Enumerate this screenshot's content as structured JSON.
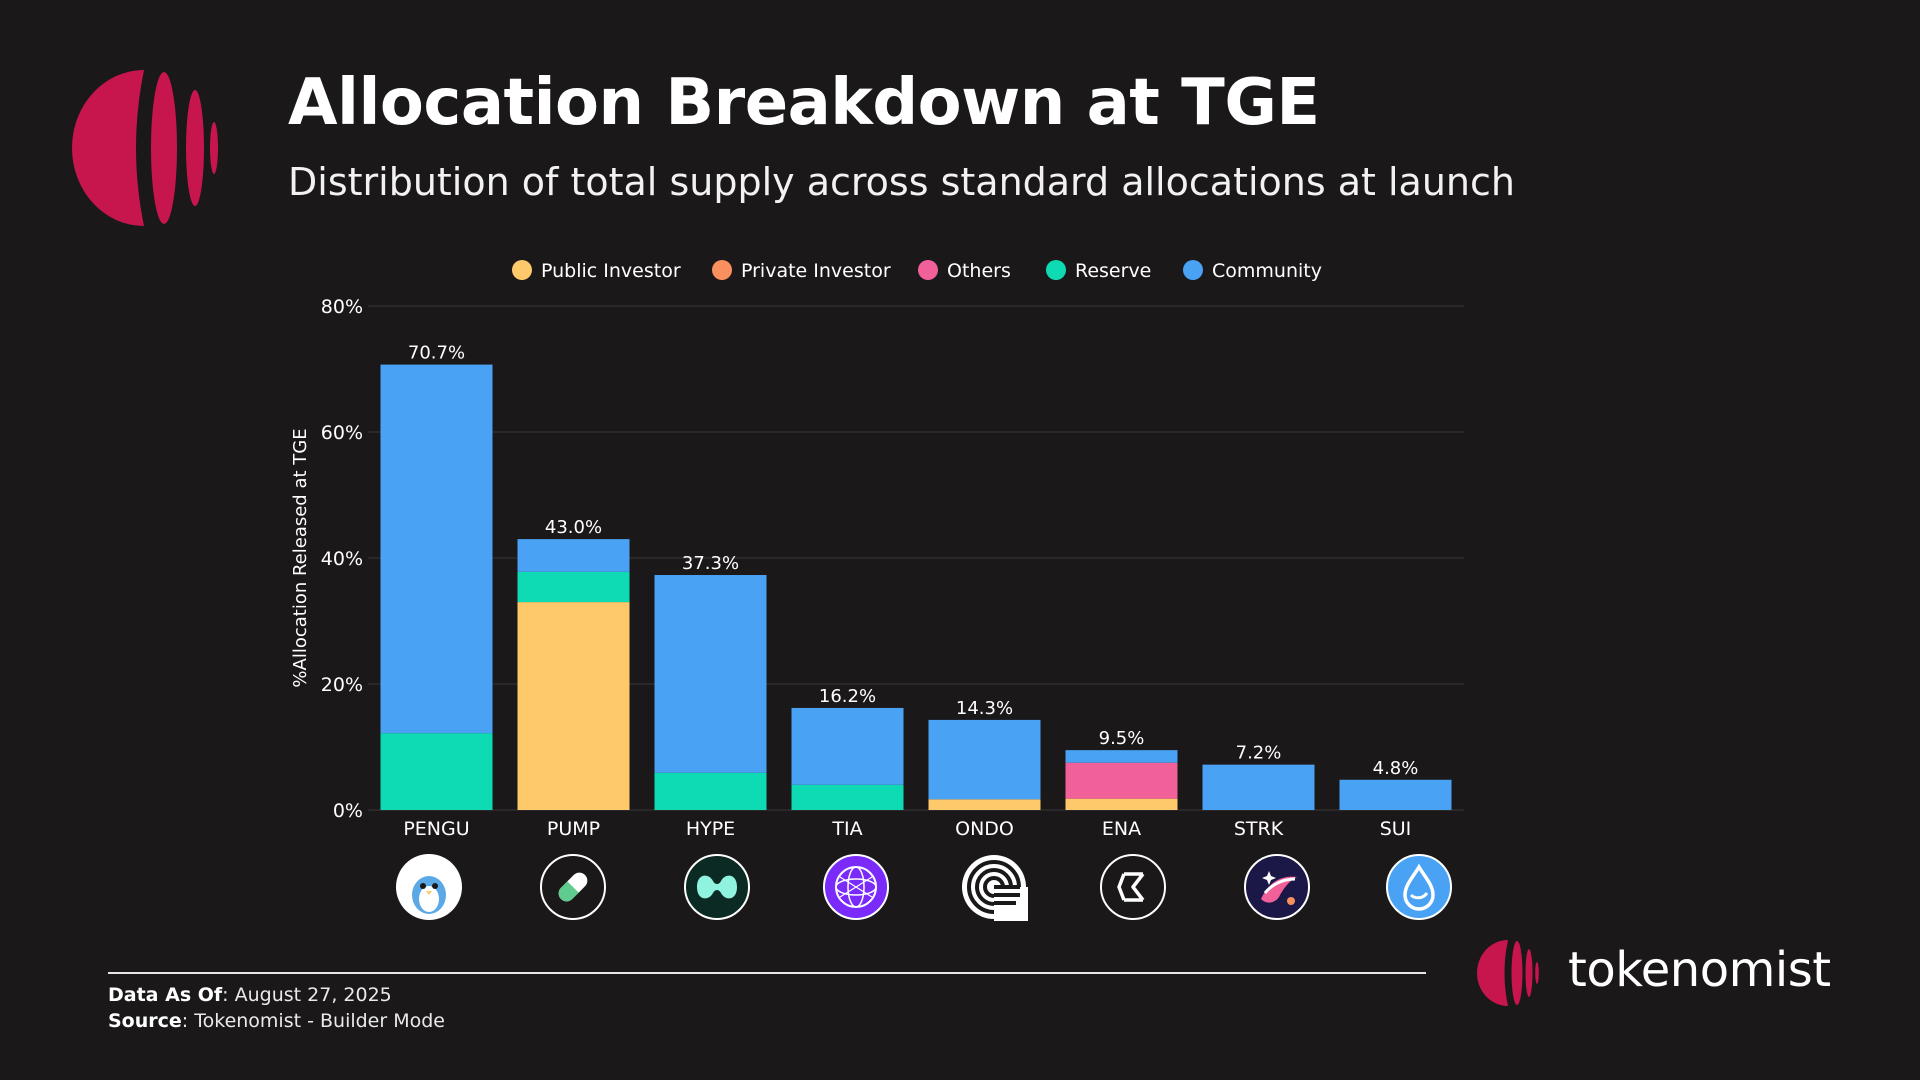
{
  "header": {
    "title": "Allocation Breakdown at TGE",
    "subtitle": "Distribution of total supply across standard allocations at launch"
  },
  "colors": {
    "background": "#1b1819",
    "brand": "#c7154d",
    "public_investor": "#fec96a",
    "private_investor": "#f9905e",
    "others": "#f2609a",
    "reserve": "#0edbb3",
    "community": "#4aa2f4",
    "grid": "#3a3638"
  },
  "chart_data": {
    "type": "bar",
    "stacked": true,
    "title": "Allocation Breakdown at TGE",
    "subtitle": "Distribution of total supply across standard allocations at launch",
    "xlabel": "",
    "ylabel": "%Allocation Released at TGE",
    "ylim": [
      0,
      80
    ],
    "yticks": [
      "0%",
      "20%",
      "40%",
      "60%",
      "80%"
    ],
    "grid": true,
    "legend_position": "top-center",
    "categories": [
      "PENGU",
      "PUMP",
      "HYPE",
      "TIA",
      "ONDO",
      "ENA",
      "STRK",
      "SUI"
    ],
    "totals": [
      "70.7%",
      "43.0%",
      "37.3%",
      "16.2%",
      "14.3%",
      "9.5%",
      "7.2%",
      "4.8%"
    ],
    "series": [
      {
        "name": "Public Investor",
        "color": "#fec96a",
        "values": [
          0,
          33,
          0,
          0,
          1.7,
          1.8,
          0,
          0
        ]
      },
      {
        "name": "Private Investor",
        "color": "#f9905e",
        "values": [
          0,
          0,
          0,
          0,
          0,
          0,
          0,
          0
        ]
      },
      {
        "name": "Others",
        "color": "#f2609a",
        "values": [
          0,
          0,
          0,
          0,
          0,
          5.7,
          0,
          0
        ]
      },
      {
        "name": "Reserve",
        "color": "#0edbb3",
        "values": [
          12.2,
          4.8,
          5.9,
          4.0,
          0,
          0,
          0,
          0
        ]
      },
      {
        "name": "Community",
        "color": "#4aa2f4",
        "values": [
          58.5,
          5.2,
          31.4,
          12.2,
          12.6,
          2.0,
          7.2,
          4.8
        ]
      }
    ]
  },
  "footer": {
    "data_as_of_label": "Data As Of",
    "data_as_of_value": ": August 27, 2025",
    "source_label": "Source",
    "source_value": ": Tokenomist - Builder Mode"
  },
  "brand": {
    "name": "tokenomist"
  },
  "icons": [
    "pengu-icon",
    "pump-icon",
    "hype-icon",
    "tia-icon",
    "ondo-icon",
    "ena-icon",
    "strk-icon",
    "sui-icon"
  ]
}
